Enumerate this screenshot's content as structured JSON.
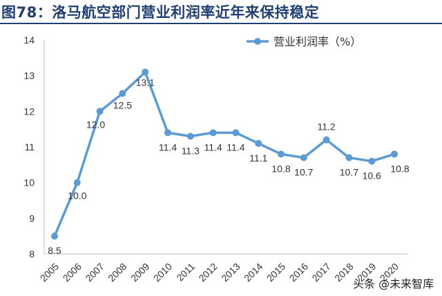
{
  "title": "图78：洛马航空部门营业利润率近年来保持稳定",
  "watermark": "头条 @未来智库",
  "colors": {
    "title": "#1f3f73",
    "series": "#5b9bd5"
  },
  "chart_data": {
    "type": "line",
    "title": "",
    "xlabel": "",
    "ylabel": "",
    "ylim": [
      8,
      14
    ],
    "yticks": [
      "8",
      "9",
      "10",
      "11",
      "12",
      "13",
      "14"
    ],
    "grid": false,
    "legend_position": "top-right",
    "categories": [
      "2005",
      "2006",
      "2007",
      "2008",
      "2009",
      "2010",
      "2011",
      "2012",
      "2013",
      "2014",
      "2015",
      "2016",
      "2017",
      "2018",
      "2019",
      "2020"
    ],
    "series": [
      {
        "name": "营业利润率（%）",
        "values": [
          8.5,
          10.0,
          12.0,
          12.5,
          13.1,
          11.4,
          11.3,
          11.4,
          11.4,
          11.1,
          10.8,
          10.7,
          11.2,
          10.7,
          10.6,
          10.8
        ],
        "labels": [
          "8.5",
          "10.0",
          "12.0",
          "12.5",
          "13.1",
          "11.4",
          "11.3",
          "11.4",
          "11.4",
          "11.1",
          "10.8",
          "10.7",
          "11.2",
          "10.7",
          "10.6",
          "10.8"
        ]
      }
    ]
  }
}
